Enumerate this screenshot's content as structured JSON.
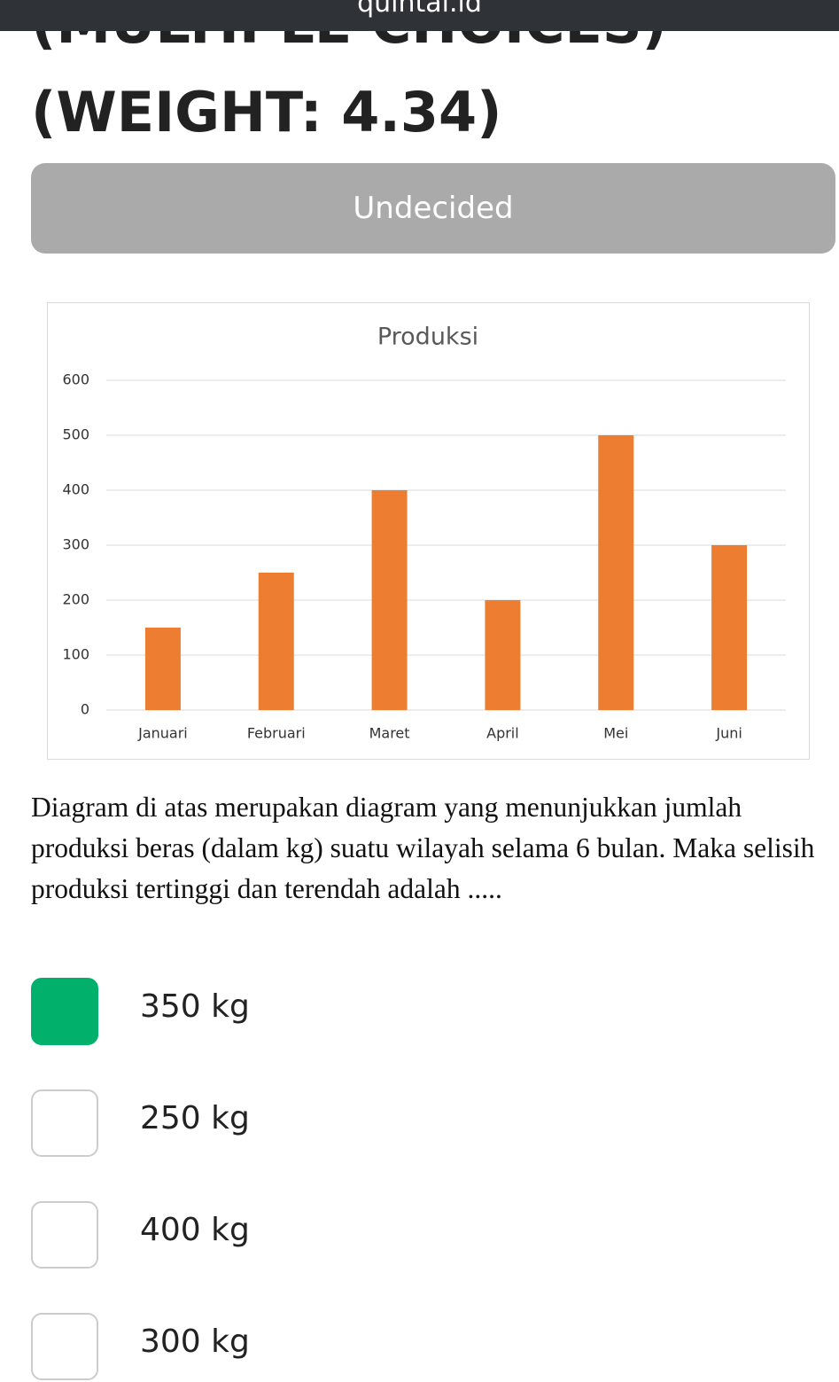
{
  "header": {
    "site": "quintal.id",
    "section": "(MULTIPLE CHOICES)",
    "weight": "(WEIGHT: 4.34)",
    "status": "Undecided"
  },
  "chart_data": {
    "type": "bar",
    "title": "Produksi",
    "categories": [
      "Januari",
      "Februari",
      "Maret",
      "April",
      "Mei",
      "Juni"
    ],
    "values": [
      150,
      250,
      400,
      200,
      500,
      300
    ],
    "color": "#ed7d31",
    "ylim": [
      0,
      600
    ],
    "yticks": [
      0,
      100,
      200,
      300,
      400,
      500,
      600
    ],
    "grid": true
  },
  "question": "Diagram di atas merupakan diagram yang menunjukkan jumlah produksi beras (dalam kg) suatu wilayah selama 6 bulan. Maka selisih produksi tertinggi dan terendah adalah .....",
  "options": [
    {
      "label": "350 kg",
      "selected": true
    },
    {
      "label": "250 kg",
      "selected": false
    },
    {
      "label": "400 kg",
      "selected": false
    },
    {
      "label": "300 kg",
      "selected": false
    }
  ]
}
